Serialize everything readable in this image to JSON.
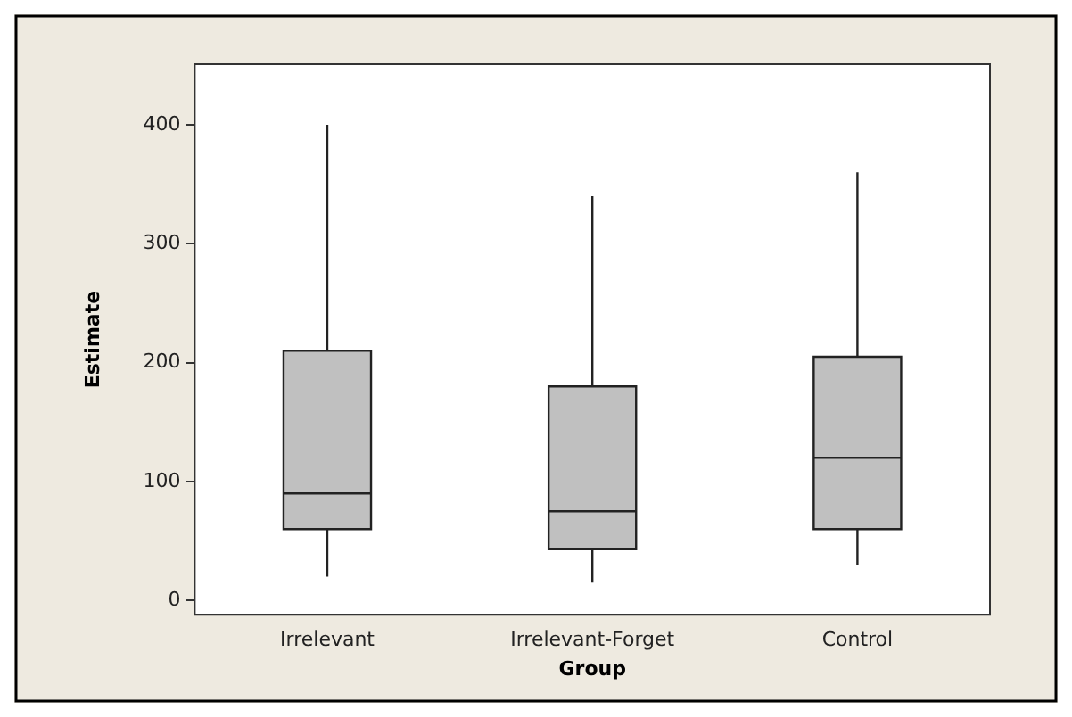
{
  "chart_data": {
    "type": "box",
    "xlabel": "Group",
    "ylabel": "Estimate",
    "categories": [
      "Irrelevant",
      "Irrelevant-Forget",
      "Control"
    ],
    "boxes": [
      {
        "low": 20,
        "q1": 60,
        "median": 90,
        "q3": 210,
        "high": 400
      },
      {
        "low": 15,
        "q1": 43,
        "median": 75,
        "q3": 180,
        "high": 340
      },
      {
        "low": 30,
        "q1": 60,
        "median": 120,
        "q3": 205,
        "high": 360
      }
    ],
    "color": "#c0c0c0",
    "ylim": [
      -12,
      451
    ],
    "yticks": [
      0,
      100,
      200,
      300,
      400
    ],
    "grid": false,
    "legend": false
  }
}
